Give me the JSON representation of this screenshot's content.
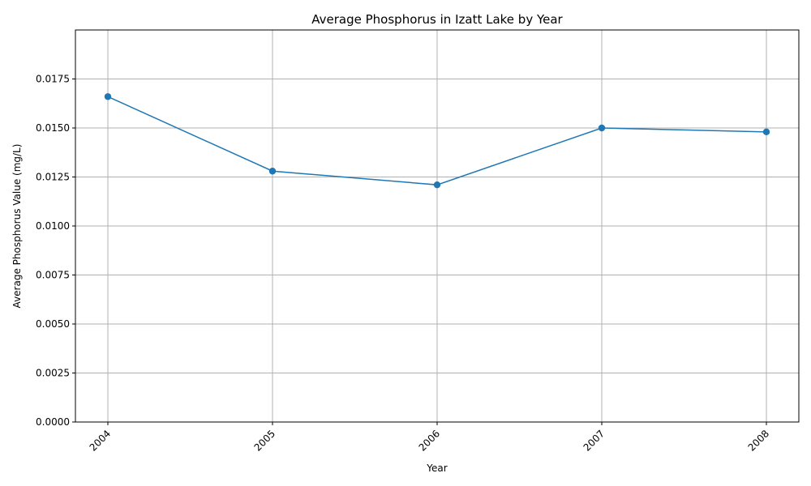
{
  "chart_data": {
    "type": "line",
    "title": "Average Phosphorus in Izatt Lake by Year",
    "xlabel": "Year",
    "ylabel": "Average Phosphorus Value (mg/L)",
    "x": [
      "2004",
      "2005",
      "2006",
      "2007",
      "2008"
    ],
    "series": [
      {
        "values": [
          0.0166,
          0.0128,
          0.0121,
          0.015,
          0.0148
        ],
        "color": "#1f77b4",
        "marker": "circle"
      }
    ],
    "ylim": [
      0,
      0.02
    ],
    "yticks": [
      "0.0000",
      "0.0025",
      "0.0050",
      "0.0075",
      "0.0100",
      "0.0125",
      "0.0150",
      "0.0175"
    ],
    "grid": true,
    "legend": false
  }
}
